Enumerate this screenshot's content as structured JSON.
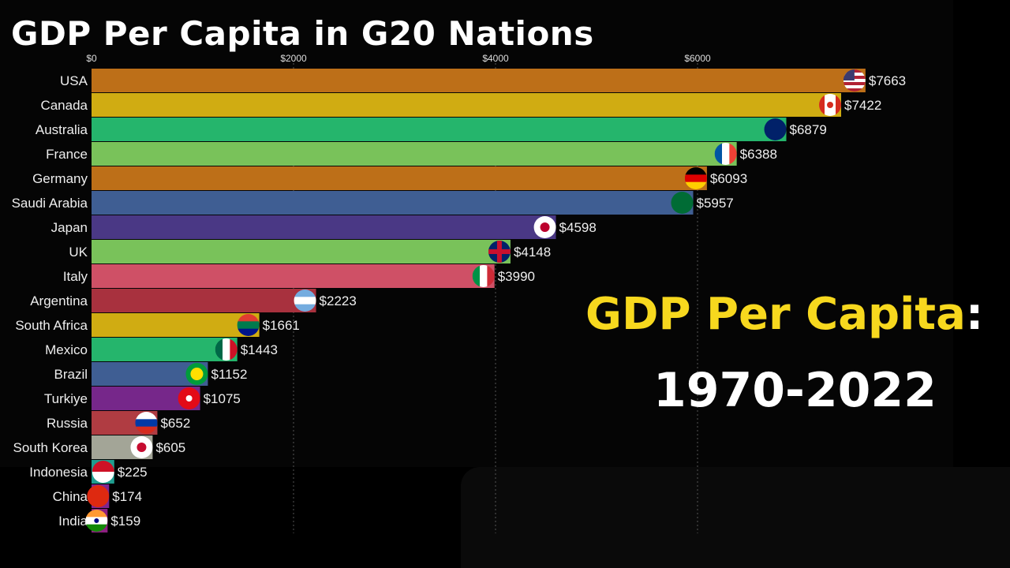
{
  "chart_data": {
    "type": "bar",
    "orientation": "horizontal",
    "title": "GDP Per Capita in G20 Nations",
    "categories": [
      "USA",
      "Canada",
      "Australia",
      "France",
      "Germany",
      "Saudi Arabia",
      "Japan",
      "UK",
      "Italy",
      "Argentina",
      "South Africa",
      "Mexico",
      "Brazil",
      "Turkiye",
      "Russia",
      "South Korea",
      "Indonesia",
      "China",
      "India"
    ],
    "values": [
      7663,
      7422,
      6879,
      6388,
      6093,
      5957,
      4598,
      4148,
      3990,
      2223,
      1661,
      1443,
      1152,
      1075,
      652,
      605,
      225,
      174,
      159
    ],
    "value_labels": [
      "$7663",
      "$7422",
      "$6879",
      "$6388",
      "$6093",
      "$5957",
      "$4598",
      "$4148",
      "$3990",
      "$2223",
      "$1661",
      "$1443",
      "$1152",
      "$1075",
      "$652",
      "$605",
      "$225",
      "$174",
      "$159"
    ],
    "colors": [
      "#bd6f18",
      "#d0ac12",
      "#25b56c",
      "#79c25a",
      "#bd6f18",
      "#3f5e93",
      "#4a3885",
      "#79c25a",
      "#cf5066",
      "#a8313e",
      "#d0ac12",
      "#25b56c",
      "#3f5e93",
      "#76278a",
      "#b03c42",
      "#a3a597",
      "#1f9d8f",
      "#7f2691",
      "#8c1f80"
    ],
    "flag_icons": [
      "flag-usa-icon",
      "flag-canada-icon",
      "flag-australia-icon",
      "flag-france-icon",
      "flag-germany-icon",
      "flag-saudi-arabia-icon",
      "flag-japan-icon",
      "flag-uk-icon",
      "flag-italy-icon",
      "flag-argentina-icon",
      "flag-south-africa-icon",
      "flag-mexico-icon",
      "flag-brazil-icon",
      "flag-turkiye-icon",
      "flag-russia-icon",
      "flag-south-korea-icon",
      "flag-indonesia-icon",
      "flag-china-icon",
      "flag-india-icon"
    ],
    "x_ticks": [
      0,
      2000,
      4000,
      6000
    ],
    "x_tick_labels": [
      "$0",
      "$2000",
      "$4000",
      "$6000"
    ],
    "xlim": [
      0,
      8000
    ],
    "grid": "vertical dashed"
  },
  "overlay": {
    "line1": "GDP Per Capita",
    "colon": ":",
    "line2": "1970-2022"
  }
}
